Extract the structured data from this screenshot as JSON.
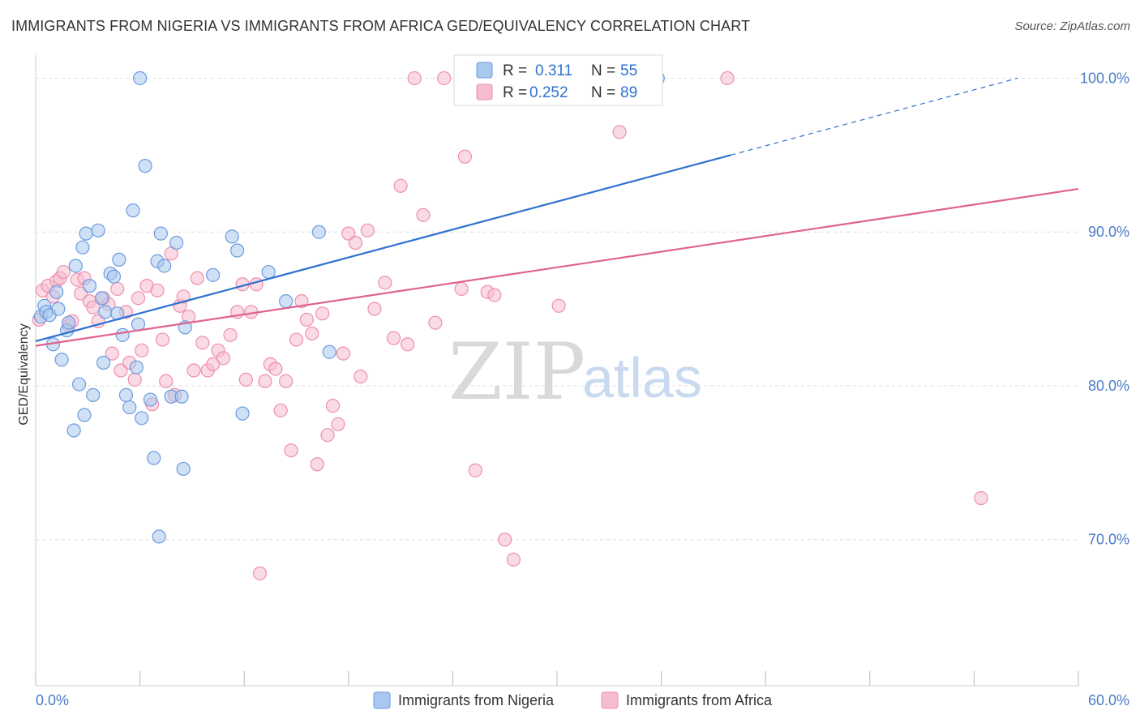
{
  "header": {
    "title": "IMMIGRANTS FROM NIGERIA VS IMMIGRANTS FROM AFRICA GED/EQUIVALENCY CORRELATION CHART",
    "source": "Source: ZipAtlas.com"
  },
  "watermark": {
    "zip": "ZIP",
    "atlas": "atlas"
  },
  "colors": {
    "nigeria_fill": "#a9c8ef",
    "nigeria_stroke": "#6b9be0",
    "nigeria_line": "#2f72d0",
    "africa_fill": "#f6bcd0",
    "africa_stroke": "#ee8fae",
    "africa_line": "#e0628e",
    "grid": "#dddddd",
    "axis_label": "#4a7cc7"
  },
  "legend": {
    "rows": [
      {
        "r_label": "R =",
        "r_value": "0.311",
        "n_label": "N =",
        "n_value": "55"
      },
      {
        "r_label": "R =",
        "r_value": "0.252",
        "n_label": "N =",
        "n_value": "89"
      }
    ]
  },
  "chart_data": {
    "type": "scatter",
    "title": "IMMIGRANTS FROM NIGERIA VS IMMIGRANTS FROM AFRICA GED/EQUIVALENCY CORRELATION CHART",
    "xlabel": "",
    "ylabel": "GED/Equivalency",
    "xlim": [
      0,
      60
    ],
    "ylim": [
      60.5,
      101.5
    ],
    "x_tick_labels": [
      "0.0%",
      "60.0%"
    ],
    "y_ticks": [
      70,
      80,
      90,
      100
    ],
    "y_tick_labels": [
      "70.0%",
      "80.0%",
      "90.0%",
      "100.0%"
    ],
    "grid": true,
    "legend_position": "top-center",
    "series": [
      {
        "name": "Immigrants from Nigeria",
        "r": 0.311,
        "n": 55,
        "trend": {
          "x0": 0,
          "y0": 82.9,
          "x1": 40,
          "y1": 95.0,
          "dash_x1": 56.5,
          "dash_y1": 100.0
        },
        "points": [
          [
            0.3,
            84.5
          ],
          [
            0.5,
            85.2
          ],
          [
            0.6,
            84.8
          ],
          [
            0.8,
            84.6
          ],
          [
            1.0,
            82.7
          ],
          [
            1.2,
            86.1
          ],
          [
            1.3,
            85.0
          ],
          [
            1.5,
            81.7
          ],
          [
            1.8,
            83.6
          ],
          [
            1.9,
            84.1
          ],
          [
            2.2,
            77.1
          ],
          [
            2.3,
            87.8
          ],
          [
            2.5,
            80.1
          ],
          [
            2.7,
            89.0
          ],
          [
            2.8,
            78.1
          ],
          [
            2.9,
            89.9
          ],
          [
            3.1,
            86.5
          ],
          [
            3.3,
            79.4
          ],
          [
            3.6,
            90.1
          ],
          [
            3.8,
            85.7
          ],
          [
            3.9,
            81.5
          ],
          [
            4.0,
            84.8
          ],
          [
            4.3,
            87.3
          ],
          [
            4.5,
            87.1
          ],
          [
            4.7,
            84.7
          ],
          [
            4.8,
            88.2
          ],
          [
            5.0,
            83.3
          ],
          [
            5.2,
            79.4
          ],
          [
            5.4,
            78.6
          ],
          [
            5.6,
            91.4
          ],
          [
            5.8,
            81.2
          ],
          [
            5.9,
            84.0
          ],
          [
            6.0,
            100.0
          ],
          [
            6.1,
            77.9
          ],
          [
            6.3,
            94.3
          ],
          [
            6.6,
            79.1
          ],
          [
            6.8,
            75.3
          ],
          [
            7.0,
            88.1
          ],
          [
            7.1,
            70.2
          ],
          [
            7.2,
            89.9
          ],
          [
            7.4,
            87.8
          ],
          [
            7.8,
            79.3
          ],
          [
            8.1,
            89.3
          ],
          [
            8.4,
            79.3
          ],
          [
            8.5,
            74.6
          ],
          [
            8.6,
            83.8
          ],
          [
            10.2,
            87.2
          ],
          [
            11.3,
            89.7
          ],
          [
            11.6,
            88.8
          ],
          [
            11.9,
            78.2
          ],
          [
            13.4,
            87.4
          ],
          [
            14.4,
            85.5
          ],
          [
            16.3,
            90.0
          ],
          [
            16.9,
            82.2
          ],
          [
            35.8,
            100.0
          ]
        ]
      },
      {
        "name": "Immigrants from Africa",
        "r": 0.252,
        "n": 89,
        "trend": {
          "x0": 0,
          "y0": 82.6,
          "x1": 60,
          "y1": 92.8
        },
        "points": [
          [
            0.2,
            84.3
          ],
          [
            0.4,
            86.2
          ],
          [
            0.7,
            86.5
          ],
          [
            1.0,
            85.8
          ],
          [
            1.2,
            86.8
          ],
          [
            1.4,
            87.0
          ],
          [
            1.6,
            87.4
          ],
          [
            1.9,
            83.9
          ],
          [
            2.1,
            84.2
          ],
          [
            2.4,
            86.9
          ],
          [
            2.6,
            86.0
          ],
          [
            2.8,
            87.0
          ],
          [
            3.1,
            85.5
          ],
          [
            3.3,
            85.1
          ],
          [
            3.6,
            84.2
          ],
          [
            3.9,
            85.7
          ],
          [
            4.2,
            85.3
          ],
          [
            4.4,
            82.1
          ],
          [
            4.7,
            86.3
          ],
          [
            4.9,
            81.0
          ],
          [
            5.2,
            84.8
          ],
          [
            5.4,
            81.5
          ],
          [
            5.7,
            80.4
          ],
          [
            5.9,
            85.7
          ],
          [
            6.1,
            82.3
          ],
          [
            6.4,
            86.5
          ],
          [
            6.7,
            78.8
          ],
          [
            7.0,
            86.2
          ],
          [
            7.3,
            83.0
          ],
          [
            7.5,
            80.3
          ],
          [
            7.8,
            88.6
          ],
          [
            8.0,
            79.4
          ],
          [
            8.3,
            85.2
          ],
          [
            8.5,
            85.8
          ],
          [
            8.8,
            84.5
          ],
          [
            9.1,
            81.0
          ],
          [
            9.3,
            87.0
          ],
          [
            9.6,
            82.8
          ],
          [
            9.9,
            81.0
          ],
          [
            10.2,
            81.4
          ],
          [
            10.5,
            82.3
          ],
          [
            10.8,
            81.8
          ],
          [
            11.2,
            83.3
          ],
          [
            11.6,
            84.8
          ],
          [
            11.9,
            86.6
          ],
          [
            12.1,
            80.4
          ],
          [
            12.4,
            84.8
          ],
          [
            12.7,
            86.6
          ],
          [
            12.9,
            67.8
          ],
          [
            13.2,
            80.3
          ],
          [
            13.5,
            81.4
          ],
          [
            13.8,
            81.1
          ],
          [
            14.1,
            78.4
          ],
          [
            14.4,
            80.3
          ],
          [
            14.7,
            75.8
          ],
          [
            15.0,
            83.0
          ],
          [
            15.3,
            85.5
          ],
          [
            15.6,
            84.3
          ],
          [
            15.9,
            83.4
          ],
          [
            16.2,
            74.9
          ],
          [
            16.5,
            84.7
          ],
          [
            16.8,
            76.8
          ],
          [
            17.1,
            78.7
          ],
          [
            17.4,
            77.5
          ],
          [
            17.7,
            82.1
          ],
          [
            18.0,
            89.9
          ],
          [
            18.4,
            89.3
          ],
          [
            18.7,
            80.6
          ],
          [
            19.1,
            90.1
          ],
          [
            19.5,
            85.0
          ],
          [
            20.1,
            86.7
          ],
          [
            20.6,
            83.1
          ],
          [
            21.0,
            93.0
          ],
          [
            21.4,
            82.7
          ],
          [
            21.8,
            100.0
          ],
          [
            22.3,
            91.1
          ],
          [
            23.0,
            84.1
          ],
          [
            23.5,
            100.0
          ],
          [
            24.5,
            86.3
          ],
          [
            24.7,
            94.9
          ],
          [
            25.3,
            74.5
          ],
          [
            26.0,
            86.1
          ],
          [
            26.4,
            85.9
          ],
          [
            27.0,
            70.0
          ],
          [
            27.5,
            68.7
          ],
          [
            30.1,
            85.2
          ],
          [
            33.6,
            96.5
          ],
          [
            39.8,
            100.0
          ],
          [
            54.4,
            72.7
          ]
        ]
      }
    ]
  },
  "bottom_legend": {
    "nigeria_label": "Immigrants from Nigeria",
    "africa_label": "Immigrants from Africa"
  }
}
